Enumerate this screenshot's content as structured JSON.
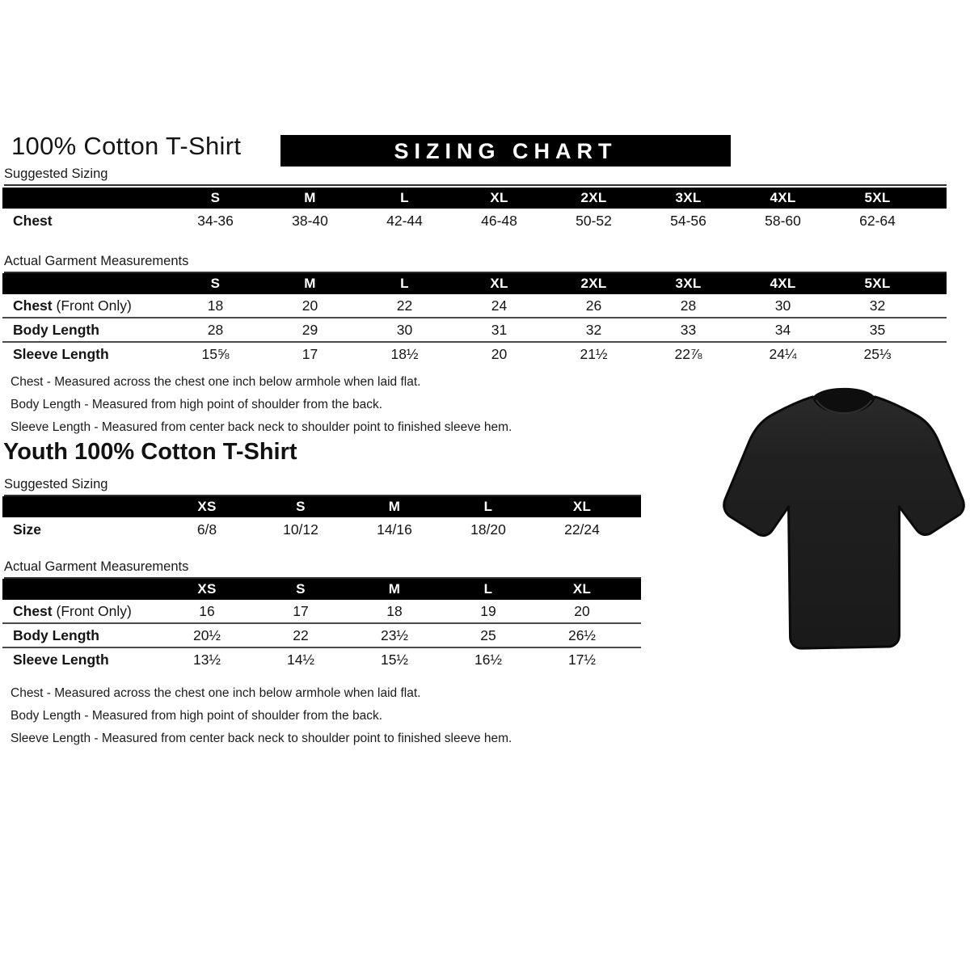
{
  "page": {
    "title": "100% Cotton T-Shirt",
    "banner": "SIZING CHART",
    "youth_title": "Youth 100% Cotton T-Shirt"
  },
  "colors": {
    "header_bar": "#000000",
    "header_text": "#ffffff",
    "body_text": "#111111",
    "tshirt_fill": "#1f1f1f"
  },
  "icons": {
    "tshirt_image": "black-tshirt-photo"
  },
  "adult": {
    "suggested": {
      "section_label": "Suggested Sizing",
      "columns": [
        "S",
        "M",
        "L",
        "XL",
        "2XL",
        "3XL",
        "4XL",
        "5XL"
      ],
      "rows": [
        {
          "label": "Chest",
          "suffix": "",
          "values": [
            "34-36",
            "38-40",
            "42-44",
            "46-48",
            "50-52",
            "54-56",
            "58-60",
            "62-64"
          ]
        }
      ]
    },
    "actual": {
      "section_label": "Actual Garment Measurements",
      "columns": [
        "S",
        "M",
        "L",
        "XL",
        "2XL",
        "3XL",
        "4XL",
        "5XL"
      ],
      "rows": [
        {
          "label": "Chest",
          "suffix": " (Front Only)",
          "values": [
            "18",
            "20",
            "22",
            "24",
            "26",
            "28",
            "30",
            "32"
          ]
        },
        {
          "label": "Body Length",
          "suffix": "",
          "values": [
            "28",
            "29",
            "30",
            "31",
            "32",
            "33",
            "34",
            "35"
          ]
        },
        {
          "label": "Sleeve Length",
          "suffix": "",
          "values": [
            "15⅝",
            "17",
            "18½",
            "20",
            "21½",
            "22⅞",
            "24¼",
            "25⅓"
          ]
        }
      ]
    },
    "notes": [
      "Chest - Measured across the chest one inch below armhole when laid flat.",
      "Body Length - Measured from high point of shoulder from the back.",
      "Sleeve Length - Measured from center back neck to shoulder point to finished sleeve hem."
    ]
  },
  "youth": {
    "suggested": {
      "section_label": "Suggested Sizing",
      "columns": [
        "XS",
        "S",
        "M",
        "L",
        "XL"
      ],
      "rows": [
        {
          "label": "Size",
          "suffix": "",
          "values": [
            "6/8",
            "10/12",
            "14/16",
            "18/20",
            "22/24"
          ]
        }
      ]
    },
    "actual": {
      "section_label": "Actual Garment Measurements",
      "columns": [
        "XS",
        "S",
        "M",
        "L",
        "XL"
      ],
      "rows": [
        {
          "label": "Chest",
          "suffix": " (Front Only)",
          "values": [
            "16",
            "17",
            "18",
            "19",
            "20"
          ]
        },
        {
          "label": "Body Length",
          "suffix": "",
          "values": [
            "20½",
            "22",
            "23½",
            "25",
            "26½"
          ]
        },
        {
          "label": "Sleeve Length",
          "suffix": "",
          "values": [
            "13½",
            "14½",
            "15½",
            "16½",
            "17½"
          ]
        }
      ]
    },
    "notes": [
      "Chest - Measured across the chest one inch below armhole when laid flat.",
      "Body Length - Measured from high point of shoulder from the back.",
      "Sleeve Length - Measured from center back neck to shoulder point to finished sleeve hem."
    ]
  }
}
